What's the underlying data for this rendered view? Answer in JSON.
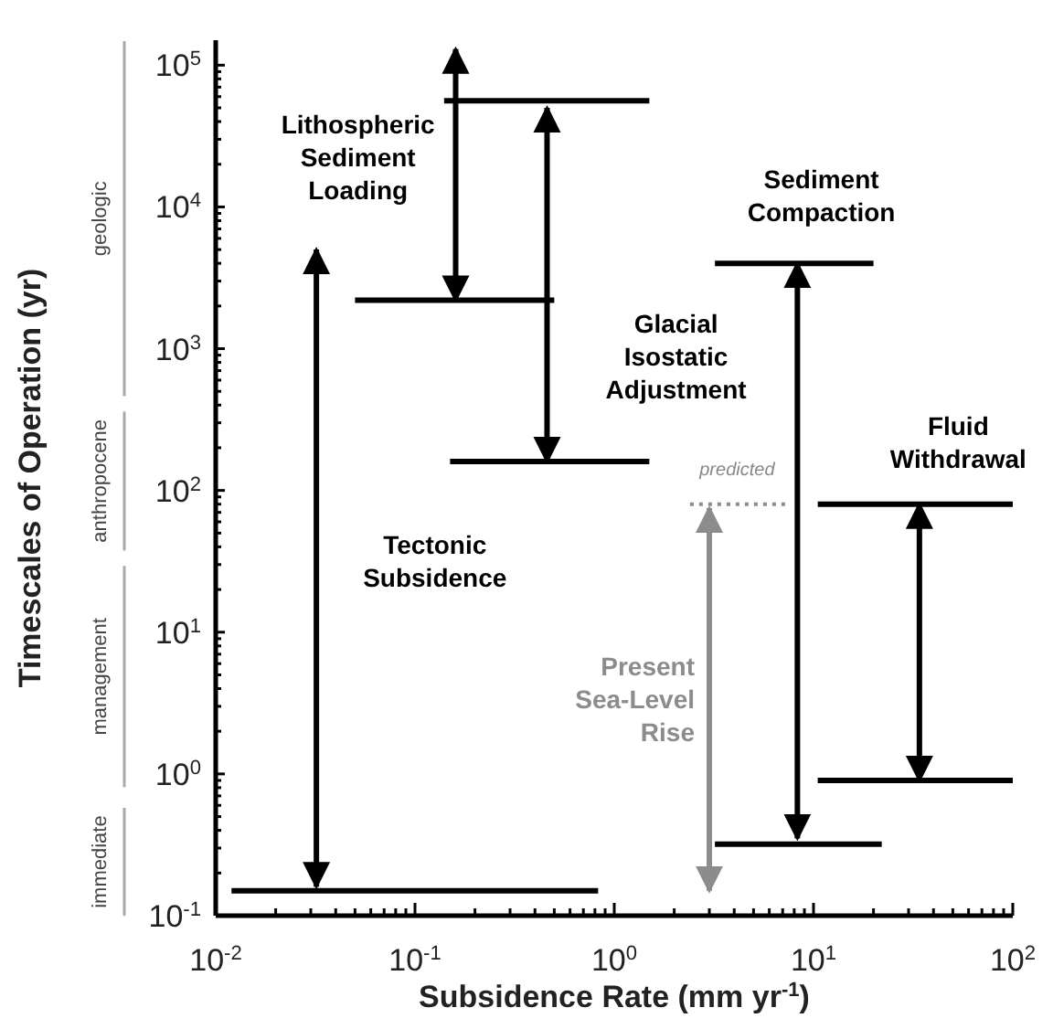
{
  "chart_data": {
    "type": "line",
    "log": "xy",
    "xlabel": "Subsidence Rate (mm yr$^{-1}$)",
    "ylabel": "Timescales of Operation (yr)",
    "xlim": [
      0.01,
      100
    ],
    "ylim": [
      0.1,
      150000
    ],
    "xticks": [
      {
        "value": 0.01,
        "label": "10$^{-2}$"
      },
      {
        "value": 0.02,
        "label": null
      },
      {
        "value": 0.03,
        "label": null
      },
      {
        "value": 0.04,
        "label": null
      },
      {
        "value": 0.05,
        "label": null
      },
      {
        "value": 0.06,
        "label": null
      },
      {
        "value": 0.07,
        "label": null
      },
      {
        "value": 0.08,
        "label": null
      },
      {
        "value": 0.09,
        "label": null
      },
      {
        "value": 0.1,
        "label": "10$^{-1}$"
      },
      {
        "value": 0.2,
        "label": null
      },
      {
        "value": 0.3,
        "label": null
      },
      {
        "value": 0.4,
        "label": null
      },
      {
        "value": 0.5,
        "label": null
      },
      {
        "value": 0.6,
        "label": null
      },
      {
        "value": 0.7,
        "label": null
      },
      {
        "value": 0.8,
        "label": null
      },
      {
        "value": 0.9,
        "label": null
      },
      {
        "value": 1,
        "label": "10$^{0}$"
      },
      {
        "value": 2,
        "label": null
      },
      {
        "value": 3,
        "label": null
      },
      {
        "value": 4,
        "label": null
      },
      {
        "value": 5,
        "label": null
      },
      {
        "value": 6,
        "label": null
      },
      {
        "value": 7,
        "label": null
      },
      {
        "value": 8,
        "label": null
      },
      {
        "value": 9,
        "label": null
      },
      {
        "value": 10,
        "label": "10$^{1}$"
      },
      {
        "value": 20,
        "label": null
      },
      {
        "value": 30,
        "label": null
      },
      {
        "value": 40,
        "label": null
      },
      {
        "value": 50,
        "label": null
      },
      {
        "value": 60,
        "label": null
      },
      {
        "value": 70,
        "label": null
      },
      {
        "value": 80,
        "label": null
      },
      {
        "value": 90,
        "label": null
      },
      {
        "value": 100,
        "label": "10$^{2}$"
      }
    ],
    "yticks": [
      {
        "value": 0.1,
        "label": "10$^{-1}$"
      },
      {
        "value": 0.2,
        "label": null
      },
      {
        "value": 0.3,
        "label": null
      },
      {
        "value": 0.4,
        "label": null
      },
      {
        "value": 0.5,
        "label": null
      },
      {
        "value": 0.6,
        "label": null
      },
      {
        "value": 0.7,
        "label": null
      },
      {
        "value": 0.8,
        "label": null
      },
      {
        "value": 0.9,
        "label": null
      },
      {
        "value": 1,
        "label": "10$^{0}$"
      },
      {
        "value": 2,
        "label": null
      },
      {
        "value": 3,
        "label": null
      },
      {
        "value": 4,
        "label": null
      },
      {
        "value": 5,
        "label": null
      },
      {
        "value": 6,
        "label": null
      },
      {
        "value": 7,
        "label": null
      },
      {
        "value": 8,
        "label": null
      },
      {
        "value": 9,
        "label": null
      },
      {
        "value": 10,
        "label": "10$^{1}$"
      },
      {
        "value": 20,
        "label": null
      },
      {
        "value": 30,
        "label": null
      },
      {
        "value": 40,
        "label": null
      },
      {
        "value": 50,
        "label": null
      },
      {
        "value": 60,
        "label": null
      },
      {
        "value": 70,
        "label": null
      },
      {
        "value": 80,
        "label": null
      },
      {
        "value": 90,
        "label": null
      },
      {
        "value": 100,
        "label": "10$^{2}$"
      },
      {
        "value": 200,
        "label": null
      },
      {
        "value": 300,
        "label": null
      },
      {
        "value": 400,
        "label": null
      },
      {
        "value": 500,
        "label": null
      },
      {
        "value": 600,
        "label": null
      },
      {
        "value": 700,
        "label": null
      },
      {
        "value": 800,
        "label": null
      },
      {
        "value": 900,
        "label": null
      },
      {
        "value": 1000,
        "label": "10$^{3}$"
      },
      {
        "value": 2000,
        "label": null
      },
      {
        "value": 3000,
        "label": null
      },
      {
        "value": 4000,
        "label": null
      },
      {
        "value": 5000,
        "label": null
      },
      {
        "value": 6000,
        "label": null
      },
      {
        "value": 7000,
        "label": null
      },
      {
        "value": 8000,
        "label": null
      },
      {
        "value": 9000,
        "label": null
      },
      {
        "value": 10000,
        "label": "10$^{4}$"
      },
      {
        "value": 20000,
        "label": null
      },
      {
        "value": 30000,
        "label": null
      },
      {
        "value": 40000,
        "label": null
      },
      {
        "value": 50000,
        "label": null
      },
      {
        "value": 60000,
        "label": null
      },
      {
        "value": 70000,
        "label": null
      },
      {
        "value": 80000,
        "label": null
      },
      {
        "value": 90000,
        "label": null
      },
      {
        "value": 100000,
        "label": "10$^{5}$"
      }
    ],
    "series": [
      {
        "color": "#000000",
        "x": [
          0.032,
          0.032
        ],
        "values": [
          5000,
          0.16
        ]
      },
      {
        "color": "#000000",
        "x": [
          0.83,
          0.012
        ],
        "values": [
          0.15,
          0.15
        ]
      },
      {
        "color": "#000000",
        "x": [
          0.16,
          0.16
        ],
        "values": [
          130000,
          2200
        ]
      },
      {
        "color": "#000000",
        "x": [
          0.05,
          0.5
        ],
        "values": [
          2200,
          2200
        ]
      },
      {
        "color": "#000000",
        "x": [
          0.14,
          1.5
        ],
        "values": [
          56000,
          56000
        ]
      },
      {
        "color": "#000000",
        "x": [
          0.46,
          0.46
        ],
        "values": [
          50000,
          160
        ]
      },
      {
        "color": "#000000",
        "x": [
          0.15,
          1.5
        ],
        "values": [
          160,
          160
        ]
      },
      {
        "color": "#000000",
        "x": [
          8.3,
          8.3
        ],
        "values": [
          4000,
          0.35
        ]
      },
      {
        "color": "#000000",
        "x": [
          3.2,
          20
        ],
        "values": [
          4000,
          4000
        ]
      },
      {
        "color": "#000000",
        "x": [
          3.2,
          22
        ],
        "values": [
          0.32,
          0.32
        ]
      },
      {
        "color": "#000000",
        "x": [
          34,
          34
        ],
        "values": [
          80,
          0.9
        ]
      },
      {
        "color": "#000000",
        "x": [
          10.5,
          100
        ],
        "values": [
          80,
          80
        ]
      },
      {
        "color": "#000000",
        "x": [
          10.5,
          100
        ],
        "values": [
          0.9,
          0.9
        ]
      },
      {
        "name": "Present\nSea-Level\nRise",
        "color": "#8c8c8c",
        "x": [
          3,
          3
        ],
        "values": [
          75,
          0.15
        ]
      },
      {
        "color": "#8c8c8c",
        "line_style": "dotted",
        "x": [
          2.4,
          7.2
        ],
        "values": [
          80,
          80
        ]
      }
    ],
    "annotations": [
      "Lithospheric\nSediment\nLoading",
      "Glacial\nIsostatic\nAdjustment",
      "Sediment\nCompaction",
      "Fluid\nWithdrawal",
      "Tectonic\nSubsidence",
      "predicted",
      "geologic",
      "anthropocene",
      "management",
      "immediate"
    ]
  }
}
